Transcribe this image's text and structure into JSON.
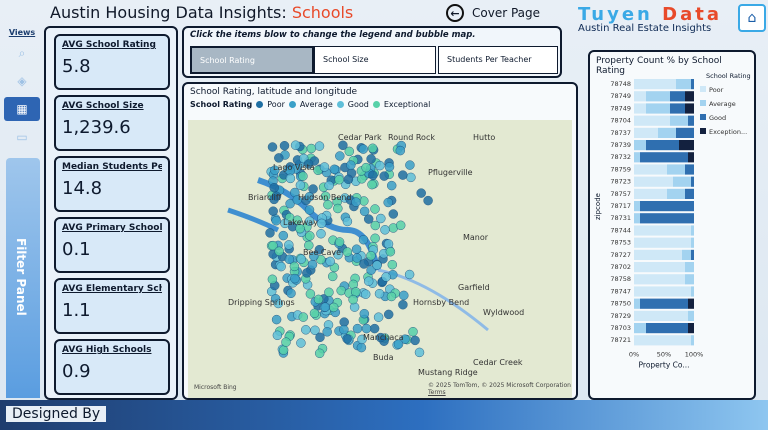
{
  "header": {
    "title": "Austin Housing Data Insights: ",
    "title_accent": "Schools",
    "cover_label": "Cover Page",
    "brand_logo_a": "Tuyen",
    "brand_logo_b": "Data",
    "brand_sub": "Austin Real Estate Insights"
  },
  "nav": {
    "views_label": "Views"
  },
  "filter_panel_label": "Filter Panel",
  "kpis": [
    {
      "label": "AVG School Rating",
      "value": "5.8"
    },
    {
      "label": "AVG School Size",
      "value": "1,239.6"
    },
    {
      "label": "Median Students Per...",
      "value": "14.8"
    },
    {
      "label": "AVG Primary Schools",
      "value": "0.1"
    },
    {
      "label": "AVG Elementary Schools",
      "value": "1.1"
    },
    {
      "label": "AVG High Schools",
      "value": "0.9"
    }
  ],
  "selector": {
    "hint": "Click the items blow to change the legend and bubble map.",
    "tabs": [
      "School Rating",
      "School Size",
      "Students Per Teacher"
    ]
  },
  "map": {
    "title": "School Rating, latitude and longitude",
    "legend_title": "School Rating",
    "legend": [
      {
        "label": "Poor",
        "color": "#1f6fa3"
      },
      {
        "label": "Average",
        "color": "#3aa0c8"
      },
      {
        "label": "Good",
        "color": "#5fbfd9"
      },
      {
        "label": "Exceptional",
        "color": "#57d1a9"
      }
    ],
    "places": [
      "Hutto",
      "Cedar Park",
      "Round Rock",
      "Lago Vista",
      "Pflugerville",
      "Briarcliff",
      "Hudson Bend",
      "Lakeway",
      "Manor",
      "Bee Cave",
      "Dripping Springs",
      "Hornsby Bend",
      "Garfield",
      "Wyldwood",
      "Manchaca",
      "Cedar Creek",
      "Buda",
      "Mustang Ridge"
    ],
    "attribution": "© 2025 TomTom, © 2025 Microsoft Corporation",
    "terms": "Terms",
    "bing": "Microsoft Bing"
  },
  "chart_data": {
    "type": "bar",
    "title": "Property Count % by School Rating",
    "ylabel": "zipcode",
    "xlabel": "Property Co...",
    "ticks": [
      "0%",
      "50%",
      "100%"
    ],
    "legend_title": "School Rating",
    "categories": [
      "78748",
      "78749",
      "78749",
      "78704",
      "78737",
      "78739",
      "78732",
      "78759",
      "78723",
      "78757",
      "78717",
      "78731",
      "78744",
      "78753",
      "78727",
      "78702",
      "78758",
      "78747",
      "78750",
      "78729",
      "78703",
      "78721"
    ],
    "series": [
      {
        "name": "Poor",
        "color": "#cfe8f7",
        "values": [
          70,
          20,
          20,
          60,
          40,
          0,
          0,
          55,
          65,
          55,
          0,
          0,
          95,
          95,
          80,
          85,
          85,
          95,
          0,
          90,
          0,
          95
        ]
      },
      {
        "name": "Average",
        "color": "#a3d3f0",
        "values": [
          25,
          40,
          40,
          30,
          30,
          20,
          10,
          30,
          30,
          30,
          10,
          10,
          5,
          5,
          15,
          15,
          15,
          5,
          10,
          10,
          20,
          5
        ]
      },
      {
        "name": "Good",
        "color": "#2f6fb0",
        "values": [
          5,
          25,
          25,
          10,
          30,
          55,
          80,
          15,
          5,
          15,
          90,
          90,
          0,
          0,
          5,
          0,
          0,
          0,
          80,
          0,
          70,
          0
        ]
      },
      {
        "name": "Exception...",
        "color": "#13213f",
        "values": [
          0,
          15,
          15,
          0,
          0,
          25,
          10,
          0,
          0,
          0,
          0,
          0,
          0,
          0,
          0,
          0,
          0,
          0,
          10,
          0,
          10,
          0
        ]
      }
    ]
  },
  "footer": {
    "label": "Designed By"
  }
}
